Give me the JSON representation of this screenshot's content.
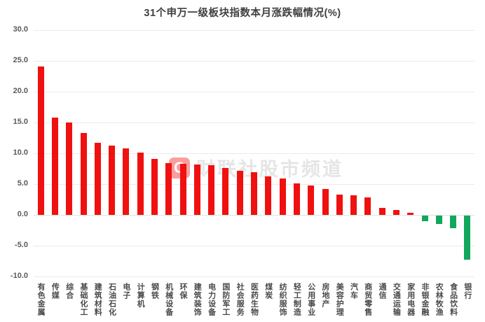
{
  "title": "31个申万一级板块指数本月涨跌幅情况(%)",
  "watermark": {
    "logo_letter": "C",
    "text": "财联社股市频道"
  },
  "colors": {
    "positive_bar": "#f01010",
    "negative_bar": "#12a75c",
    "grid": "#ebebeb",
    "zero_line": "#e2e2e2",
    "tick_label": "#595959",
    "category_label": "#4a4a4a",
    "title": "#3f3f3f"
  },
  "chart_data": {
    "type": "bar",
    "title": "31个申万一级板块指数本月涨跌幅情况(%)",
    "xlabel": "",
    "ylabel": "",
    "ylim": [
      -10,
      30
    ],
    "ytick_step": 5,
    "ytick_labels": [
      "30.0",
      "25.0",
      "20.0",
      "15.0",
      "10.0",
      "5.0",
      "0.0",
      "-5.0",
      "-10.0"
    ],
    "grid": true,
    "legend": "none",
    "categories": [
      "有色金属",
      "传媒",
      "综合",
      "基础化工",
      "建筑材料",
      "石油石化",
      "电子",
      "计算机",
      "钢铁",
      "机械设备",
      "环保",
      "建筑装饰",
      "电力设备",
      "国防军工",
      "社会服务",
      "医药生物",
      "煤炭",
      "纺织服饰",
      "轻工制造",
      "公用事业",
      "房地产",
      "美容护理",
      "汽车",
      "商贸零售",
      "通信",
      "交通运输",
      "家用电器",
      "非银金融",
      "农林牧渔",
      "食品饮料",
      "银行"
    ],
    "values": [
      24.1,
      15.8,
      15.0,
      13.2,
      11.7,
      11.2,
      10.8,
      10.1,
      9.0,
      8.4,
      8.2,
      8.1,
      8.0,
      7.6,
      7.1,
      6.9,
      6.2,
      5.9,
      5.1,
      4.7,
      4.2,
      3.3,
      3.1,
      2.8,
      1.1,
      0.7,
      0.3,
      -1.0,
      -1.4,
      -2.1,
      -7.2
    ]
  }
}
